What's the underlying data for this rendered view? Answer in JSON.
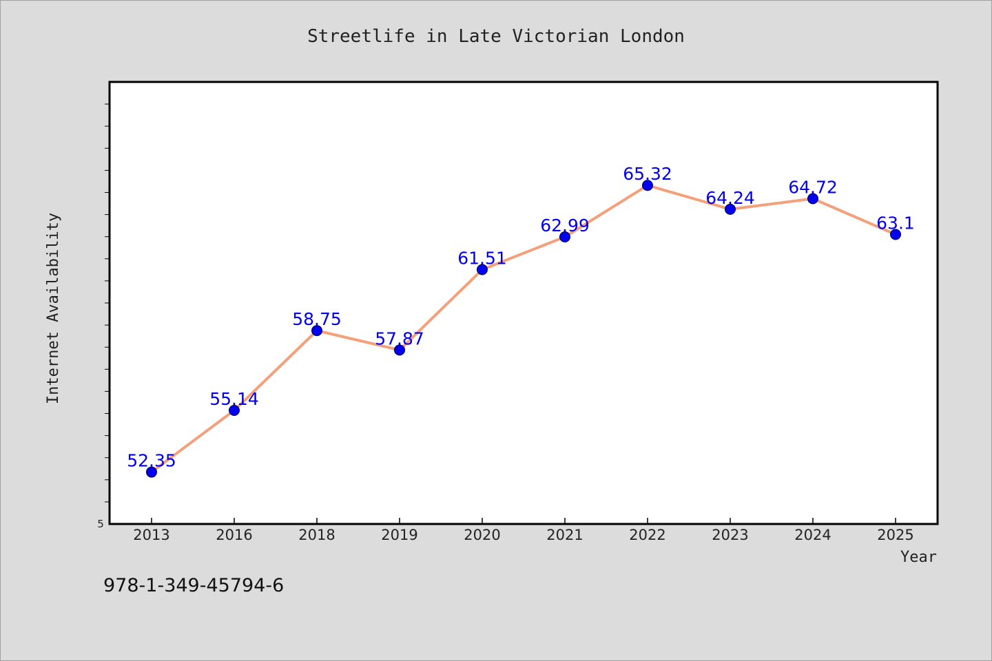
{
  "chart_data": {
    "type": "line",
    "title": "Streetlife in Late Victorian London",
    "xlabel": "Year",
    "ylabel": "Internet Availability",
    "categories": [
      "2013",
      "2016",
      "2018",
      "2019",
      "2020",
      "2021",
      "2022",
      "2023",
      "2024",
      "2025"
    ],
    "series": [
      {
        "values": [
          52.35,
          55.14,
          58.75,
          57.87,
          61.51,
          62.99,
          65.32,
          64.24,
          64.72,
          63.1
        ],
        "labels": [
          "52.35",
          "55.14",
          "58.75",
          "57.87",
          "61.51",
          "62.99",
          "65.32",
          "64.24",
          "64.72",
          "63.1"
        ],
        "line_color": "#f4a07a",
        "marker_color": "#0000ee"
      }
    ],
    "y_tick_labels": [
      "5"
    ],
    "ylim": [
      50,
      70
    ],
    "grid": false,
    "legend": "none"
  },
  "footer": {
    "isbn": "978-1-349-45794-6"
  }
}
